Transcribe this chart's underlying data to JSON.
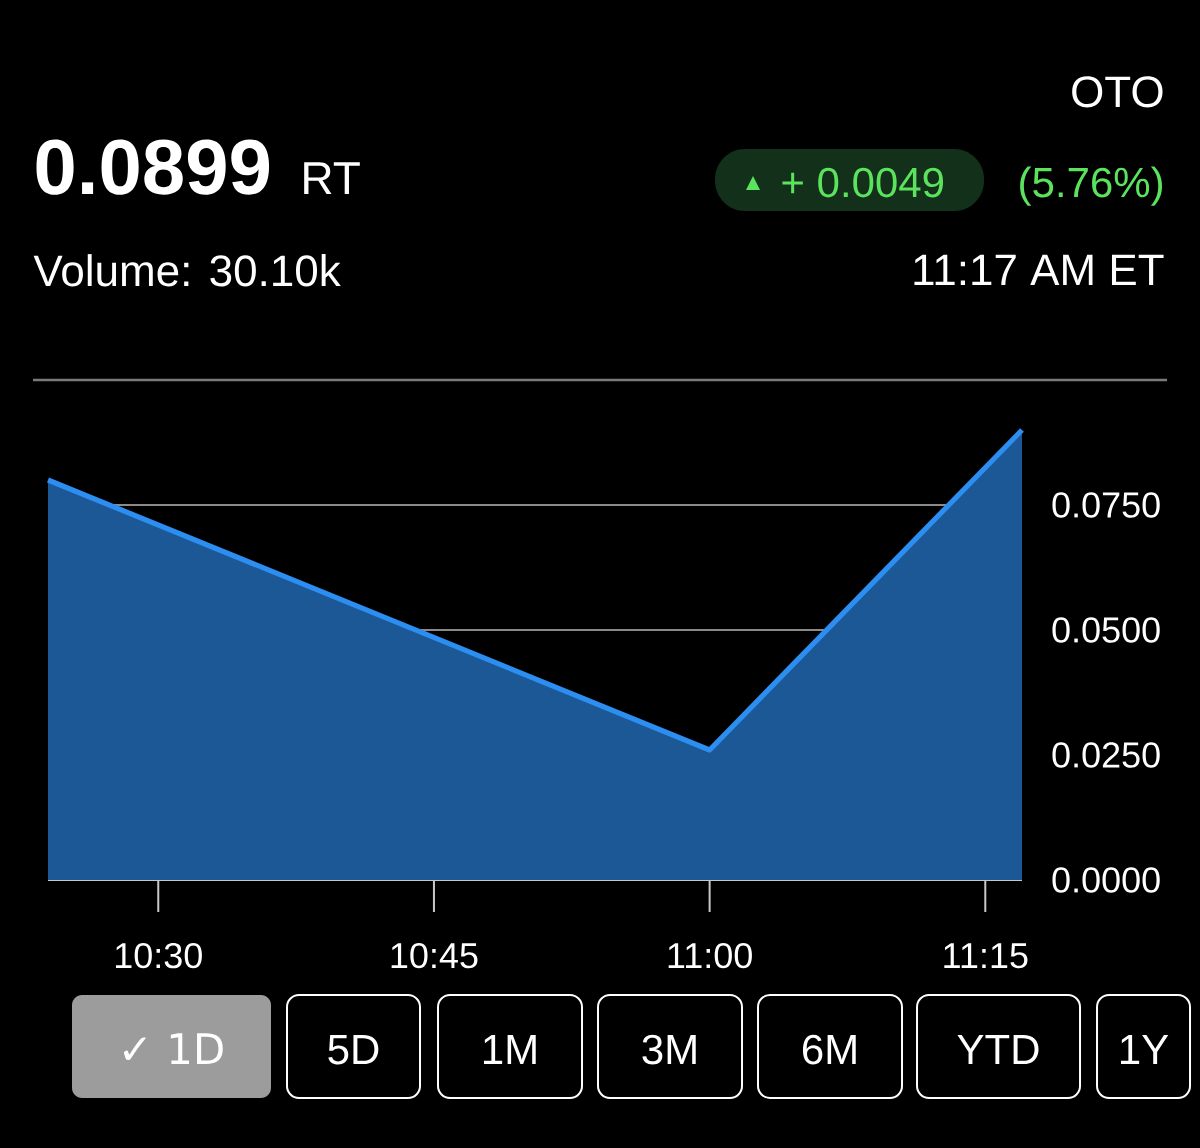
{
  "chart_data": {
    "type": "area",
    "x": [
      10.4,
      11.0,
      11.2833
    ],
    "series": [
      {
        "color": "#2b8ef0",
        "values": [
          0.08,
          0.026,
          0.09
        ]
      }
    ],
    "xlim": [
      10.4,
      11.2833
    ],
    "xticks": [
      {
        "value": 10.5,
        "label": "10:30"
      },
      {
        "value": 10.75,
        "label": "10:45"
      },
      {
        "value": 11.0,
        "label": "11:00"
      },
      {
        "value": 11.25,
        "label": "11:15"
      }
    ],
    "ylim": [
      0,
      0.1
    ],
    "yticks": [
      {
        "value": 0,
        "label": "0.0000"
      },
      {
        "value": 0.025,
        "label": "0.0250"
      },
      {
        "value": 0.05,
        "label": "0.0500"
      },
      {
        "value": 0.075,
        "label": "0.0750"
      }
    ],
    "grid": "y",
    "annotations": [
      "0.0899",
      "RT",
      "OTO",
      "▲",
      "+ 0.0049",
      "(5.76%)",
      "Volume: 30.10k",
      "11:17 AM ET",
      "✓ 1D",
      "5D",
      "1M",
      "3M",
      "6M",
      "YTD",
      "1Y"
    ]
  }
}
